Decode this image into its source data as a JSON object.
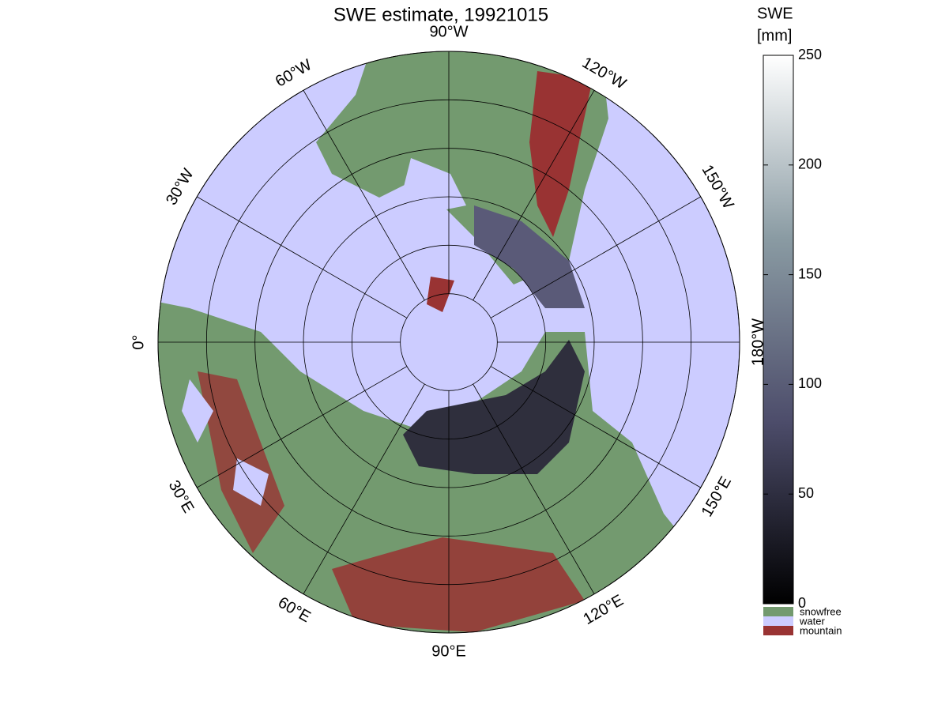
{
  "map": {
    "title": "SWE estimate, 19921015",
    "lon_ticks": [
      {
        "value": -90,
        "label": "90°W"
      },
      {
        "value": -60,
        "label": "60°W"
      },
      {
        "value": -30,
        "label": "30°W"
      },
      {
        "value": 0,
        "label": "0°"
      },
      {
        "value": 30,
        "label": "30°E"
      },
      {
        "value": 60,
        "label": "60°E"
      },
      {
        "value": 90,
        "label": "90°E"
      },
      {
        "value": 120,
        "label": "120°E"
      },
      {
        "value": 150,
        "label": "150°E"
      },
      {
        "value": 180,
        "label": "180°W"
      },
      {
        "value": -150,
        "label": "150°W"
      },
      {
        "value": -120,
        "label": "120°W"
      }
    ],
    "lat_circles": [
      80,
      70,
      60,
      50,
      40,
      30
    ],
    "lat_lim": [
      90,
      30
    ],
    "colorbar": {
      "title": [
        "SWE",
        "[mm]"
      ],
      "lim": [
        0,
        250
      ],
      "ticks": [
        0,
        50,
        100,
        150,
        200,
        250
      ],
      "colors": [
        "#000000",
        "#4d4d6b",
        "#8a9ba3",
        "#ffffff"
      ]
    },
    "legend": [
      {
        "name": "snowfree",
        "color": "#739a6f"
      },
      {
        "name": "water",
        "color": "#ccccff"
      },
      {
        "name": "mountain",
        "color": "#993333"
      }
    ]
  }
}
